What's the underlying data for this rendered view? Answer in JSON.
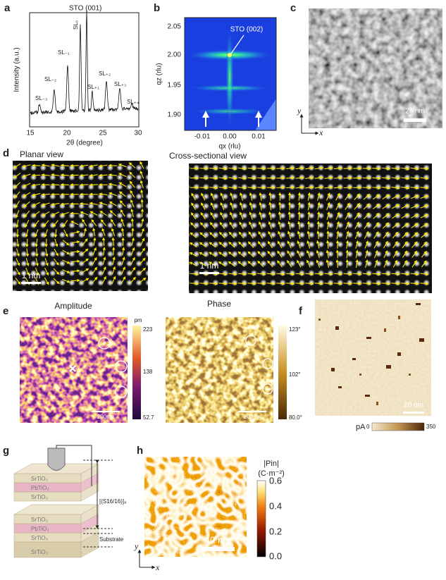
{
  "panels": {
    "a": {
      "label": "a",
      "peaks": [
        "SL₋₃",
        "SL₋₂",
        "SL₋₁",
        "SL₀",
        "STO (001)",
        "SL₊₁",
        "SL₊₂",
        "SL₊₃",
        "SL₊₄"
      ],
      "x_ticks": [
        "15",
        "20",
        "25",
        "30"
      ],
      "x_axis": "2θ (degree)",
      "y_axis": "Intensity (a.u.)"
    },
    "b": {
      "label": "b",
      "y_ticks": [
        "2.05",
        "2.00",
        "1.95",
        "1.90"
      ],
      "x_ticks": [
        "-0.01",
        "0.00",
        "0.01"
      ],
      "y_axis": "qz (rlu)",
      "x_axis": "qx (rlu)",
      "annotation": "STO (002)"
    },
    "c": {
      "label": "c",
      "scale_bar": "20 nm",
      "y_axis": "y",
      "x_axis": "x"
    },
    "d": {
      "label": "d",
      "planar_title": "Planar view",
      "cross_title": "Cross-sectional view",
      "planar_scale": "1 nm",
      "cross_scale": "1 nm"
    },
    "e": {
      "label": "e",
      "amplitude_title": "Amplitude",
      "phase_title": "Phase",
      "amplitude_unit": "pm",
      "amplitude_ticks": [
        "223",
        "138",
        "52.7"
      ],
      "phase_ticks": [
        "123°",
        "102°",
        "80.0°"
      ],
      "amplitude_scale": "200nm",
      "phase_scale": "200nm"
    },
    "f": {
      "label": "f",
      "scale_bar": "20 nm",
      "unit": "pA",
      "min": "0",
      "max": "350"
    },
    "g": {
      "label": "g",
      "layers": [
        "SrTiO₃",
        "PbTiO₃",
        "SrTiO₃",
        "SrTiO₃",
        "PbTiO₃",
        "SrTiO₃",
        "SrTiO₃"
      ],
      "period": "[(S16/16)]₈",
      "substrate": "Substrate"
    },
    "h": {
      "label": "h",
      "quantity": "|Pin|",
      "unit": "(C·m⁻²)",
      "ticks": [
        "0.6",
        "0.4",
        "0.2",
        "0.0"
      ],
      "scale_bar": "40 nm",
      "y_axis": "y",
      "x_axis": "x"
    }
  }
}
